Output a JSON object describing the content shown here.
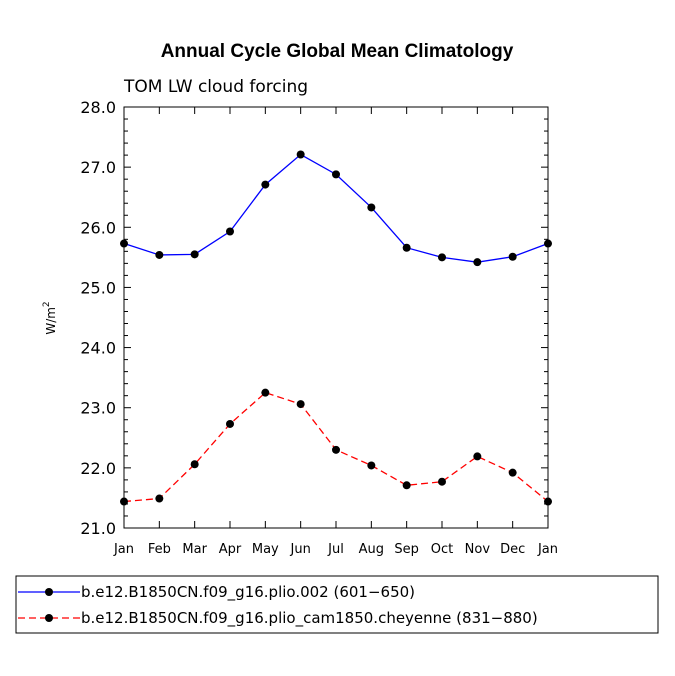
{
  "chart_data": {
    "type": "line",
    "title": "Annual Cycle Global Mean Climatology",
    "subtitle": "TOM LW cloud forcing",
    "ylabel_base": "W/m",
    "ylabel_sup": "2",
    "xlabel": "",
    "categories": [
      "Jan",
      "Feb",
      "Mar",
      "Apr",
      "May",
      "Jun",
      "Jul",
      "Aug",
      "Sep",
      "Oct",
      "Nov",
      "Dec",
      "Jan"
    ],
    "ylim": [
      21.0,
      28.0
    ],
    "yticks": [
      "21.0",
      "22.0",
      "23.0",
      "24.0",
      "25.0",
      "26.0",
      "27.0",
      "28.0"
    ],
    "series": [
      {
        "name": "b.e12.B1850CN.f09_g16.plio.002 (601-650)",
        "legend_label": "b.e12.B1850CN.f09_g16.plio.002 (601−650)",
        "color": "#0000ff",
        "dash": "solid",
        "values": [
          25.73,
          25.54,
          25.55,
          25.93,
          26.71,
          27.21,
          26.88,
          26.33,
          25.66,
          25.5,
          25.42,
          25.51,
          25.73
        ]
      },
      {
        "name": "b.e12.B1850CN.f09_g16.plio_cam1850.cheyenne (831-880)",
        "legend_label": "b.e12.B1850CN.f09_g16.plio_cam1850.cheyenne (831−880)",
        "color": "#ff0000",
        "dash": "dashed",
        "values": [
          21.44,
          21.49,
          22.06,
          22.73,
          23.25,
          23.06,
          22.3,
          22.04,
          21.71,
          21.77,
          22.19,
          21.92,
          21.44
        ]
      }
    ]
  }
}
